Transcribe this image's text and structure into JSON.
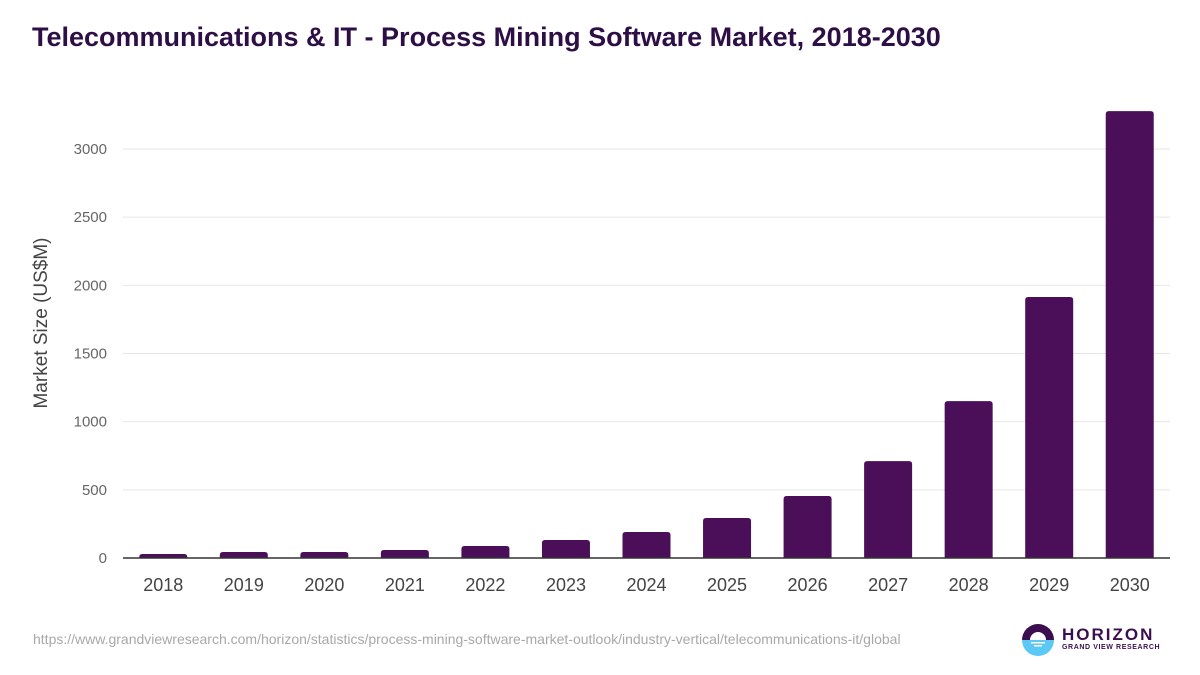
{
  "chart_data": {
    "type": "bar",
    "title": "Telecommunications & IT - Process Mining Software Market, 2018-2030",
    "xlabel": "",
    "ylabel": "Market Size (US$M)",
    "categories": [
      "2018",
      "2019",
      "2020",
      "2021",
      "2022",
      "2023",
      "2024",
      "2025",
      "2026",
      "2027",
      "2028",
      "2029",
      "2030"
    ],
    "values": [
      29,
      44,
      44,
      59,
      88,
      132,
      191,
      293,
      455,
      711,
      1151,
      1914,
      3278
    ],
    "ylim": [
      0,
      3300
    ],
    "yticks": [
      0,
      500,
      1000,
      1500,
      2000,
      2500,
      3000
    ],
    "grid": true,
    "bar_color": "#4b0f59"
  },
  "footer": {
    "source_url": "https://www.grandviewresearch.com/horizon/statistics/process-mining-software-market-outlook/industry-vertical/telecommunications-it/global",
    "logo_text": "HORIZON",
    "logo_sub": "GRAND VIEW RESEARCH"
  }
}
